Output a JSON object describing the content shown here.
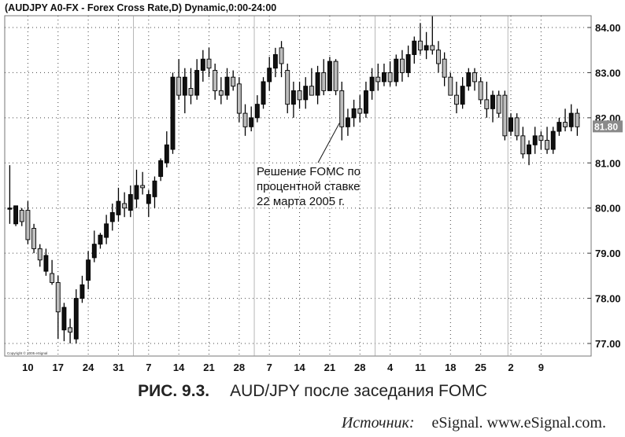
{
  "caption": {
    "figure": "РИС. 9.3.",
    "text": "AUD/JPY после заседания FOMC"
  },
  "source": {
    "label": "Источник:",
    "text": "eSignal. www.eSignal.com."
  },
  "chart_data": {
    "type": "candlestick",
    "title": "(AUDJPY A0-FX - Forex Cross Rate,D) Dynamic,0:00-24:00",
    "copyright": "Copyright © 2005 eSignal",
    "y_ticks": [
      "84.00",
      "83.00",
      "82.00",
      "81.00",
      "80.00",
      "79.00",
      "78.00",
      "77.00"
    ],
    "y_tick_values": [
      84,
      83,
      82,
      81,
      80,
      79,
      78,
      77
    ],
    "ylim": [
      76.75,
      84.35
    ],
    "last_price": "81.80",
    "last_value": 81.8,
    "x_ticks": [
      "10",
      "17",
      "24",
      "31",
      "7",
      "14",
      "21",
      "28",
      "7",
      "14",
      "21",
      "28",
      "4",
      "11",
      "18",
      "25",
      "2",
      "9"
    ],
    "x_tick_index": [
      3,
      8,
      13,
      18,
      23,
      28,
      33,
      38,
      43,
      48,
      53,
      58,
      63,
      68,
      73,
      78,
      83,
      88
    ],
    "month_separator_index": [
      20.5,
      40.5,
      60.5,
      82.5
    ],
    "annotation": {
      "lines": [
        "Решение FOMC по",
        "процентной ставке",
        "22 марта 2005 г."
      ],
      "points_to_index": 55
    },
    "grid": true,
    "candles": [
      {
        "o": 80,
        "h": 80.95,
        "l": 79.65,
        "c": 80
      },
      {
        "o": 79.65,
        "h": 80.05,
        "l": 79.6,
        "c": 80.05
      },
      {
        "o": 79.95,
        "h": 80,
        "l": 79.6,
        "c": 79.7
      },
      {
        "o": 79.95,
        "h": 80.15,
        "l": 79.2,
        "c": 79.3
      },
      {
        "o": 79.55,
        "h": 79.65,
        "l": 79,
        "c": 79.1
      },
      {
        "o": 79.1,
        "h": 79.2,
        "l": 78.7,
        "c": 78.85
      },
      {
        "o": 78.6,
        "h": 79.1,
        "l": 78.5,
        "c": 78.95
      },
      {
        "o": 78.55,
        "h": 78.85,
        "l": 78.3,
        "c": 78.35
      },
      {
        "o": 78.35,
        "h": 78.5,
        "l": 77.1,
        "c": 77.7
      },
      {
        "o": 77.3,
        "h": 77.9,
        "l": 77.05,
        "c": 77.8
      },
      {
        "o": 77.35,
        "h": 77.55,
        "l": 77,
        "c": 77.25
      },
      {
        "o": 77.1,
        "h": 78.2,
        "l": 77,
        "c": 78
      },
      {
        "o": 78,
        "h": 78.5,
        "l": 77.9,
        "c": 78.3
      },
      {
        "o": 78.4,
        "h": 79.05,
        "l": 78.2,
        "c": 78.85
      },
      {
        "o": 78.9,
        "h": 79.5,
        "l": 78.8,
        "c": 79.2
      },
      {
        "o": 79.2,
        "h": 79.45,
        "l": 79.1,
        "c": 79.4
      },
      {
        "o": 79.35,
        "h": 79.85,
        "l": 79.2,
        "c": 79.65
      },
      {
        "o": 79.7,
        "h": 80.1,
        "l": 79.5,
        "c": 79.9
      },
      {
        "o": 79.85,
        "h": 80.45,
        "l": 79.7,
        "c": 80.15
      },
      {
        "o": 80.1,
        "h": 80.35,
        "l": 79.8,
        "c": 80
      },
      {
        "o": 79.95,
        "h": 80.5,
        "l": 79.8,
        "c": 80.3
      },
      {
        "o": 80.2,
        "h": 80.85,
        "l": 80,
        "c": 80.5
      },
      {
        "o": 80.5,
        "h": 80.8,
        "l": 80.3,
        "c": 80.45
      },
      {
        "o": 80.1,
        "h": 80.4,
        "l": 79.8,
        "c": 80.3
      },
      {
        "o": 80.25,
        "h": 80.7,
        "l": 80,
        "c": 80.6
      },
      {
        "o": 80.7,
        "h": 81.1,
        "l": 80.6,
        "c": 81.05
      },
      {
        "o": 81,
        "h": 81.7,
        "l": 80.9,
        "c": 81.4
      },
      {
        "o": 81.3,
        "h": 83,
        "l": 81.2,
        "c": 82.9
      },
      {
        "o": 82.9,
        "h": 83.3,
        "l": 82.4,
        "c": 82.5
      },
      {
        "o": 82.5,
        "h": 83.1,
        "l": 82.1,
        "c": 82.9
      },
      {
        "o": 82.65,
        "h": 83.1,
        "l": 82.3,
        "c": 82.5
      },
      {
        "o": 82.5,
        "h": 83.3,
        "l": 82.4,
        "c": 83.05
      },
      {
        "o": 83.05,
        "h": 83.5,
        "l": 82.8,
        "c": 83.3
      },
      {
        "o": 83.3,
        "h": 83.55,
        "l": 82.9,
        "c": 83.1
      },
      {
        "o": 83.05,
        "h": 83.2,
        "l": 82.4,
        "c": 82.6
      },
      {
        "o": 82.6,
        "h": 82.9,
        "l": 82.3,
        "c": 82.5
      },
      {
        "o": 82.5,
        "h": 83.1,
        "l": 82.4,
        "c": 82.9
      },
      {
        "o": 82.9,
        "h": 83.05,
        "l": 82.6,
        "c": 82.7
      },
      {
        "o": 82.75,
        "h": 82.9,
        "l": 81.9,
        "c": 82.1
      },
      {
        "o": 82.1,
        "h": 82.3,
        "l": 81.6,
        "c": 81.8
      },
      {
        "o": 81.8,
        "h": 82.25,
        "l": 81.7,
        "c": 82
      },
      {
        "o": 82,
        "h": 82.5,
        "l": 81.9,
        "c": 82.3
      },
      {
        "o": 82.3,
        "h": 82.9,
        "l": 82.2,
        "c": 82.8
      },
      {
        "o": 82.8,
        "h": 83.35,
        "l": 82.6,
        "c": 83.1
      },
      {
        "o": 83.1,
        "h": 83.55,
        "l": 82.9,
        "c": 83.4
      },
      {
        "o": 83.55,
        "h": 83.7,
        "l": 82.9,
        "c": 83.2
      },
      {
        "o": 83.05,
        "h": 83.2,
        "l": 82.1,
        "c": 82.3
      },
      {
        "o": 82.3,
        "h": 82.8,
        "l": 82,
        "c": 82.6
      },
      {
        "o": 82.6,
        "h": 82.8,
        "l": 82.2,
        "c": 82.4
      },
      {
        "o": 82.4,
        "h": 82.9,
        "l": 82.2,
        "c": 82.7
      },
      {
        "o": 82.7,
        "h": 83.1,
        "l": 82.5,
        "c": 82.5
      },
      {
        "o": 82.5,
        "h": 83.15,
        "l": 82.3,
        "c": 83
      },
      {
        "o": 83,
        "h": 83.3,
        "l": 82.5,
        "c": 82.6
      },
      {
        "o": 82.6,
        "h": 83.35,
        "l": 82.6,
        "c": 83.25
      },
      {
        "o": 83.25,
        "h": 83.3,
        "l": 82.5,
        "c": 82.6
      },
      {
        "o": 82.6,
        "h": 82.8,
        "l": 81.5,
        "c": 81.8
      },
      {
        "o": 81.8,
        "h": 82.2,
        "l": 81.6,
        "c": 82
      },
      {
        "o": 82,
        "h": 82.4,
        "l": 81.8,
        "c": 82.2
      },
      {
        "o": 82.2,
        "h": 82.5,
        "l": 81.9,
        "c": 82.1
      },
      {
        "o": 82.1,
        "h": 82.8,
        "l": 82,
        "c": 82.6
      },
      {
        "o": 82.6,
        "h": 83.1,
        "l": 82.4,
        "c": 82.9
      },
      {
        "o": 82.9,
        "h": 83.2,
        "l": 82.6,
        "c": 82.8
      },
      {
        "o": 82.8,
        "h": 83.2,
        "l": 82.7,
        "c": 83
      },
      {
        "o": 83,
        "h": 83.25,
        "l": 82.7,
        "c": 82.8
      },
      {
        "o": 82.8,
        "h": 83.4,
        "l": 82.7,
        "c": 83.3
      },
      {
        "o": 83.3,
        "h": 83.5,
        "l": 82.8,
        "c": 83
      },
      {
        "o": 83,
        "h": 83.6,
        "l": 82.9,
        "c": 83.4
      },
      {
        "o": 83.4,
        "h": 83.8,
        "l": 83.2,
        "c": 83.7
      },
      {
        "o": 83.7,
        "h": 84.1,
        "l": 83.4,
        "c": 83.5
      },
      {
        "o": 83.5,
        "h": 83.9,
        "l": 83.3,
        "c": 83.6
      },
      {
        "o": 83.6,
        "h": 84.25,
        "l": 83.4,
        "c": 83.5
      },
      {
        "o": 83.5,
        "h": 83.7,
        "l": 83,
        "c": 83.2
      },
      {
        "o": 83.3,
        "h": 83.45,
        "l": 82.7,
        "c": 82.9
      },
      {
        "o": 82.9,
        "h": 83,
        "l": 82.5,
        "c": 82.5
      },
      {
        "o": 82.5,
        "h": 82.8,
        "l": 82.1,
        "c": 82.3
      },
      {
        "o": 82.3,
        "h": 82.9,
        "l": 82.2,
        "c": 82.7
      },
      {
        "o": 82.7,
        "h": 83.1,
        "l": 82.6,
        "c": 83
      },
      {
        "o": 83,
        "h": 83.1,
        "l": 82.6,
        "c": 82.8
      },
      {
        "o": 82.8,
        "h": 82.9,
        "l": 82.3,
        "c": 82.4
      },
      {
        "o": 82.4,
        "h": 82.8,
        "l": 82,
        "c": 82.2
      },
      {
        "o": 82.2,
        "h": 82.6,
        "l": 81.9,
        "c": 82.5
      },
      {
        "o": 82.5,
        "h": 82.6,
        "l": 82,
        "c": 82.1
      },
      {
        "o": 82.5,
        "h": 82.6,
        "l": 81.5,
        "c": 81.6
      },
      {
        "o": 81.7,
        "h": 82.1,
        "l": 81.6,
        "c": 82
      },
      {
        "o": 82,
        "h": 82.1,
        "l": 81.5,
        "c": 81.6
      },
      {
        "o": 81.6,
        "h": 81.8,
        "l": 81.1,
        "c": 81.2
      },
      {
        "o": 81.2,
        "h": 81.5,
        "l": 80.95,
        "c": 81.4
      },
      {
        "o": 81.4,
        "h": 81.8,
        "l": 81.2,
        "c": 81.6
      },
      {
        "o": 81.6,
        "h": 81.7,
        "l": 81.3,
        "c": 81.5
      },
      {
        "o": 81.5,
        "h": 81.8,
        "l": 81.2,
        "c": 81.3
      },
      {
        "o": 81.3,
        "h": 81.8,
        "l": 81.2,
        "c": 81.7
      },
      {
        "o": 81.7,
        "h": 82,
        "l": 81.6,
        "c": 81.9
      },
      {
        "o": 81.9,
        "h": 82.2,
        "l": 81.7,
        "c": 81.8
      },
      {
        "o": 81.8,
        "h": 82.3,
        "l": 81.7,
        "c": 82.1
      },
      {
        "o": 82.1,
        "h": 82.2,
        "l": 81.6,
        "c": 81.8
      }
    ]
  }
}
